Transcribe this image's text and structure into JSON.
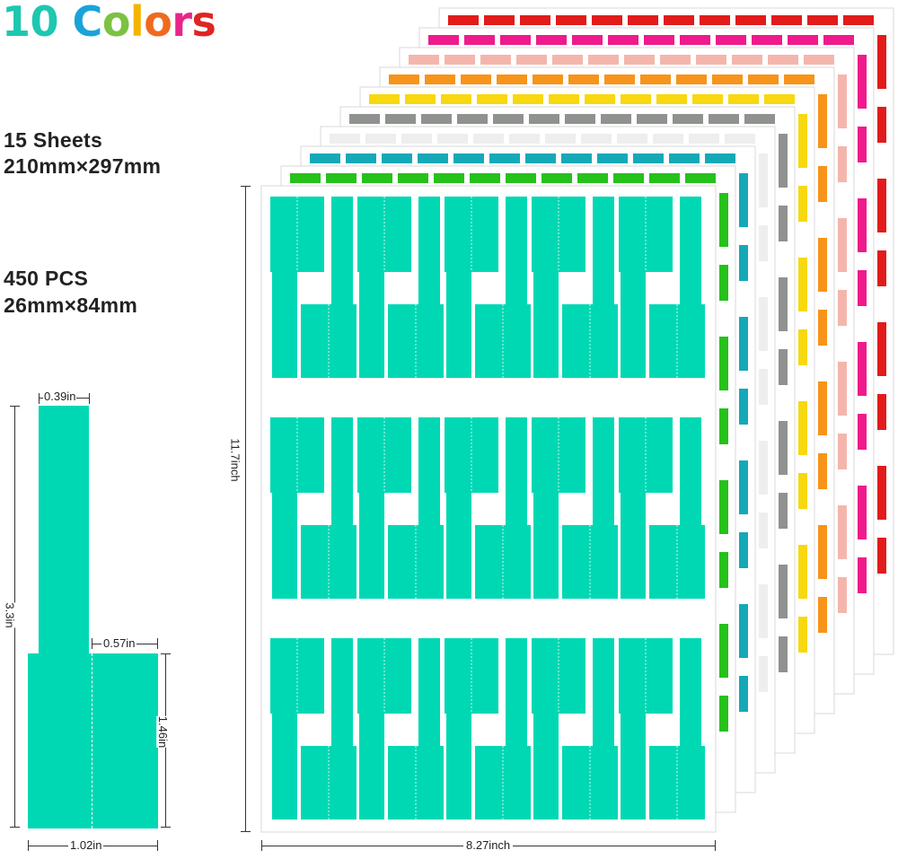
{
  "title": {
    "letters": [
      {
        "ch": "1",
        "color": "#1ec7b0"
      },
      {
        "ch": "0",
        "color": "#1ec7b0"
      },
      {
        "ch": " ",
        "color": "#ffffff"
      },
      {
        "ch": "C",
        "color": "#1aa3d8"
      },
      {
        "ch": "o",
        "color": "#7cc242"
      },
      {
        "ch": "l",
        "color": "#f4b400"
      },
      {
        "ch": "o",
        "color": "#f06a1d"
      },
      {
        "ch": "r",
        "color": "#e8268a"
      },
      {
        "ch": "s",
        "color": "#e02424"
      }
    ]
  },
  "specs": {
    "sheets_count": "15 Sheets",
    "sheet_size": "210mm×297mm",
    "pcs_count": "450 PCS",
    "label_size": "26mm×84mm"
  },
  "label_dims": {
    "flag_width": "0.39in",
    "total_length": "3.3in",
    "half_width": "0.57in",
    "wrap_length": "1.46in",
    "total_width": "1.02in"
  },
  "sheet_dims": {
    "height": "11.7inch",
    "width": "8.27inch"
  },
  "colors": {
    "front": "#00d8b4",
    "stack": [
      "#e21b1b",
      "#ef1a8c",
      "#f4b6ac",
      "#f79419",
      "#f8d80f",
      "#8f928f",
      "#eeeeee",
      "#15a9b8",
      "#26c11b"
    ]
  }
}
